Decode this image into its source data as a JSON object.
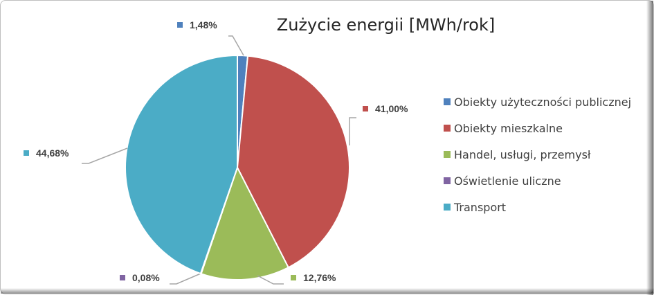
{
  "chart_data": {
    "type": "pie",
    "title": "Zużycie energii [MWh/rok]",
    "legend_position": "right",
    "categories": [
      "Obiekty użyteczności publicznej",
      "Obiekty mieszkalne",
      "Handel, usługi, przemysł",
      "Oświetlenie uliczne",
      "Transport"
    ],
    "values": [
      1.48,
      41.0,
      12.76,
      0.08,
      44.68
    ],
    "labels": [
      "1,48%",
      "41,00%",
      "12,76%",
      "0,08%",
      "44,68%"
    ],
    "colors": [
      "#4f81bd",
      "#c0504d",
      "#9bbb59",
      "#8064a2",
      "#4bacc6"
    ]
  }
}
